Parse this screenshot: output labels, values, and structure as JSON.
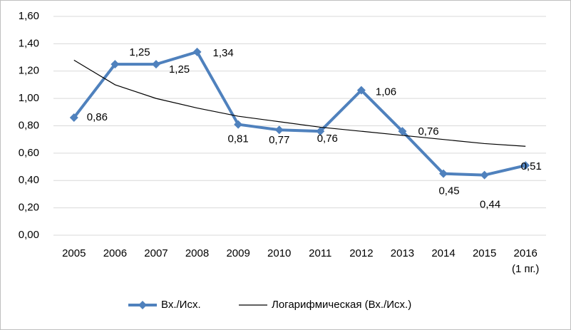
{
  "chart_data": {
    "type": "line",
    "categories": [
      "2005",
      "2006",
      "2007",
      "2008",
      "2009",
      "2010",
      "2011",
      "2012",
      "2013",
      "2014",
      "2015",
      "2016\n(1 пг.)"
    ],
    "series": [
      {
        "name": "Вх./Исх.",
        "color": "#4f81bd",
        "marker": "diamond",
        "values": [
          0.86,
          1.25,
          1.25,
          1.34,
          0.81,
          0.77,
          0.76,
          1.06,
          0.76,
          0.45,
          0.44,
          0.51
        ],
        "value_labels": [
          "0,86",
          "1,25",
          "1,25",
          "1,34",
          "0,81",
          "0,77",
          "0,76",
          "1,06",
          "0,76",
          "0,45",
          "0,44",
          "0,51"
        ]
      },
      {
        "name": "Логарифмическая (Вх./Исх.)",
        "color": "#000000",
        "values": [
          1.28,
          1.1,
          1.0,
          0.93,
          0.87,
          0.83,
          0.79,
          0.76,
          0.73,
          0.7,
          0.67,
          0.65
        ]
      }
    ],
    "ylim": [
      0,
      1.6
    ],
    "yticks": [
      {
        "value": 0,
        "label": "0,00"
      },
      {
        "value": 0.2,
        "label": "0,20"
      },
      {
        "value": 0.4,
        "label": "0,40"
      },
      {
        "value": 0.6,
        "label": "0,60"
      },
      {
        "value": 0.8,
        "label": "0,80"
      },
      {
        "value": 1.0,
        "label": "1,00"
      },
      {
        "value": 1.2,
        "label": "1,20"
      },
      {
        "value": 1.4,
        "label": "1,40"
      },
      {
        "value": 1.6,
        "label": "1,60"
      }
    ],
    "grid": true,
    "legend": "bottom"
  }
}
